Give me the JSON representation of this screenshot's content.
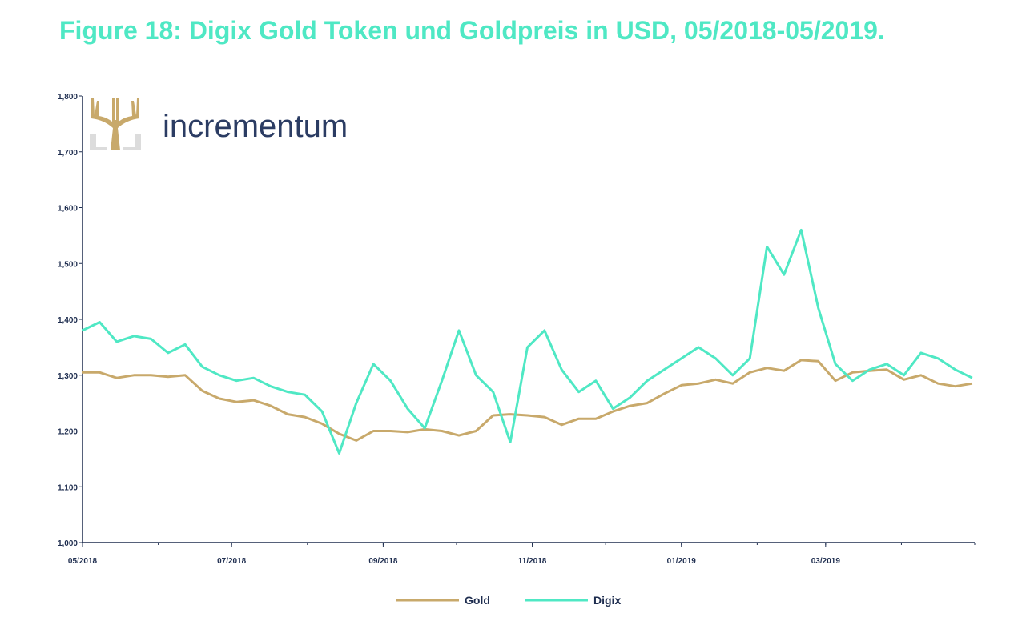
{
  "title": "Figure 18: Digix Gold Token und Goldpreis in USD, 05/2018-05/2019.",
  "logo": {
    "text": "incrementum",
    "icon": "tree-icon"
  },
  "colors": {
    "gold": "#c8a96b",
    "digix": "#4fe8c4",
    "title": "#4fe8c4",
    "axis": "#1e2d4f",
    "logo_text": "#2b3c63"
  },
  "chart_data": {
    "type": "line",
    "title": "Figure 18: Digix Gold Token und Goldpreis in USD, 05/2018-05/2019.",
    "xlabel": "",
    "ylabel": "",
    "ylim": [
      1000,
      1800
    ],
    "y_ticks": [
      "1,000",
      "1,100",
      "1,200",
      "1,300",
      "1,400",
      "1,500",
      "1,600",
      "1,700",
      "1,800"
    ],
    "y_tick_values": [
      1000,
      1100,
      1200,
      1300,
      1400,
      1500,
      1600,
      1700,
      1800
    ],
    "x_ticks": [
      "05/2018",
      "07/2018",
      "09/2018",
      "11/2018",
      "01/2019",
      "03/2019"
    ],
    "x_tick_values": [
      "2018-05-01",
      "2018-07-01",
      "2018-09-01",
      "2018-11-01",
      "2019-01-01",
      "2019-03-01"
    ],
    "xlim": [
      "2018-05-01",
      "2019-05-01"
    ],
    "grid": false,
    "legend_position": "bottom-center",
    "series": [
      {
        "name": "Gold",
        "color": "#c8a96b",
        "points": [
          [
            "2018-05-01",
            1305
          ],
          [
            "2018-05-08",
            1305
          ],
          [
            "2018-05-15",
            1295
          ],
          [
            "2018-05-22",
            1300
          ],
          [
            "2018-05-29",
            1300
          ],
          [
            "2018-06-05",
            1297
          ],
          [
            "2018-06-12",
            1300
          ],
          [
            "2018-06-19",
            1272
          ],
          [
            "2018-06-26",
            1258
          ],
          [
            "2018-07-03",
            1252
          ],
          [
            "2018-07-10",
            1255
          ],
          [
            "2018-07-17",
            1245
          ],
          [
            "2018-07-24",
            1230
          ],
          [
            "2018-07-31",
            1225
          ],
          [
            "2018-08-07",
            1213
          ],
          [
            "2018-08-14",
            1195
          ],
          [
            "2018-08-21",
            1183
          ],
          [
            "2018-08-28",
            1200
          ],
          [
            "2018-09-04",
            1200
          ],
          [
            "2018-09-11",
            1198
          ],
          [
            "2018-09-18",
            1203
          ],
          [
            "2018-09-25",
            1200
          ],
          [
            "2018-10-02",
            1192
          ],
          [
            "2018-10-09",
            1200
          ],
          [
            "2018-10-16",
            1228
          ],
          [
            "2018-10-23",
            1230
          ],
          [
            "2018-10-30",
            1228
          ],
          [
            "2018-11-06",
            1225
          ],
          [
            "2018-11-13",
            1211
          ],
          [
            "2018-11-20",
            1222
          ],
          [
            "2018-11-27",
            1222
          ],
          [
            "2018-12-04",
            1235
          ],
          [
            "2018-12-11",
            1245
          ],
          [
            "2018-12-18",
            1250
          ],
          [
            "2018-12-25",
            1267
          ],
          [
            "2019-01-01",
            1282
          ],
          [
            "2019-01-08",
            1285
          ],
          [
            "2019-01-15",
            1292
          ],
          [
            "2019-01-22",
            1285
          ],
          [
            "2019-01-29",
            1305
          ],
          [
            "2019-02-05",
            1313
          ],
          [
            "2019-02-12",
            1308
          ],
          [
            "2019-02-19",
            1327
          ],
          [
            "2019-02-26",
            1325
          ],
          [
            "2019-03-05",
            1290
          ],
          [
            "2019-03-12",
            1305
          ],
          [
            "2019-03-19",
            1308
          ],
          [
            "2019-03-26",
            1310
          ],
          [
            "2019-04-02",
            1292
          ],
          [
            "2019-04-09",
            1300
          ],
          [
            "2019-04-16",
            1285
          ],
          [
            "2019-04-23",
            1280
          ],
          [
            "2019-04-30",
            1285
          ]
        ]
      },
      {
        "name": "Digix",
        "color": "#4fe8c4",
        "points": [
          [
            "2018-05-01",
            1380
          ],
          [
            "2018-05-08",
            1395
          ],
          [
            "2018-05-15",
            1360
          ],
          [
            "2018-05-22",
            1370
          ],
          [
            "2018-05-29",
            1365
          ],
          [
            "2018-06-05",
            1340
          ],
          [
            "2018-06-12",
            1355
          ],
          [
            "2018-06-19",
            1315
          ],
          [
            "2018-06-26",
            1300
          ],
          [
            "2018-07-03",
            1290
          ],
          [
            "2018-07-10",
            1295
          ],
          [
            "2018-07-17",
            1280
          ],
          [
            "2018-07-24",
            1270
          ],
          [
            "2018-07-31",
            1265
          ],
          [
            "2018-08-07",
            1235
          ],
          [
            "2018-08-14",
            1160
          ],
          [
            "2018-08-21",
            1250
          ],
          [
            "2018-08-28",
            1320
          ],
          [
            "2018-09-04",
            1290
          ],
          [
            "2018-09-11",
            1240
          ],
          [
            "2018-09-18",
            1205
          ],
          [
            "2018-09-25",
            1290
          ],
          [
            "2018-10-02",
            1380
          ],
          [
            "2018-10-09",
            1300
          ],
          [
            "2018-10-16",
            1270
          ],
          [
            "2018-10-23",
            1180
          ],
          [
            "2018-10-30",
            1350
          ],
          [
            "2018-11-06",
            1380
          ],
          [
            "2018-11-13",
            1310
          ],
          [
            "2018-11-20",
            1270
          ],
          [
            "2018-11-27",
            1290
          ],
          [
            "2018-12-04",
            1240
          ],
          [
            "2018-12-11",
            1260
          ],
          [
            "2018-12-18",
            1290
          ],
          [
            "2018-12-25",
            1310
          ],
          [
            "2019-01-01",
            1330
          ],
          [
            "2019-01-08",
            1350
          ],
          [
            "2019-01-15",
            1330
          ],
          [
            "2019-01-22",
            1300
          ],
          [
            "2019-01-29",
            1330
          ],
          [
            "2019-02-05",
            1530
          ],
          [
            "2019-02-12",
            1480
          ],
          [
            "2019-02-19",
            1560
          ],
          [
            "2019-02-26",
            1420
          ],
          [
            "2019-03-05",
            1320
          ],
          [
            "2019-03-12",
            1290
          ],
          [
            "2019-03-19",
            1310
          ],
          [
            "2019-03-26",
            1320
          ],
          [
            "2019-04-02",
            1300
          ],
          [
            "2019-04-09",
            1340
          ],
          [
            "2019-04-16",
            1330
          ],
          [
            "2019-04-23",
            1310
          ],
          [
            "2019-04-30",
            1295
          ]
        ]
      }
    ]
  }
}
